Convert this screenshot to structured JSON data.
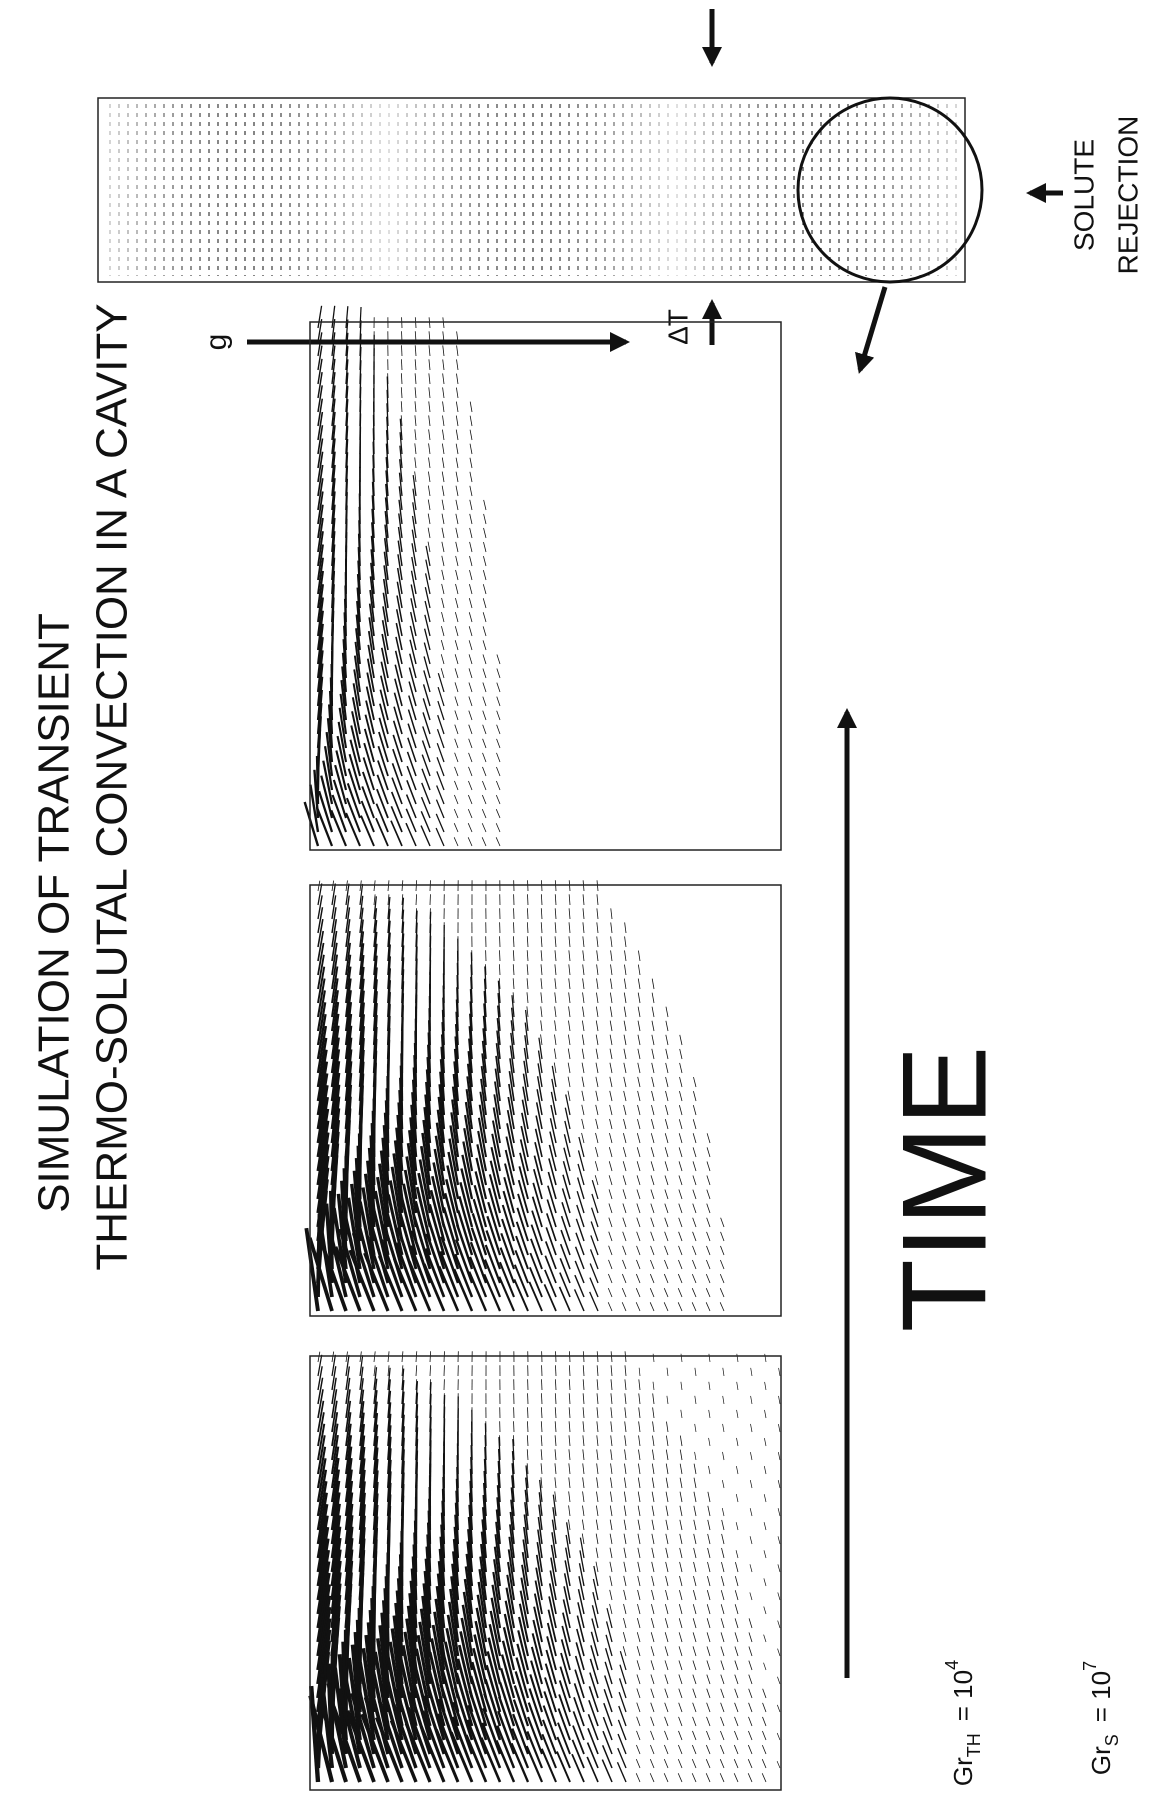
{
  "title": {
    "line1": "SIMULATION OF  TRANSIENT",
    "line2": "THERMO-SOLUTAL CONVECTION IN A CAVITY"
  },
  "labels": {
    "gravity": "g",
    "delta_t": "ΔT",
    "solute": "SOLUTE",
    "rejection": "REJECTION",
    "time": "TIME"
  },
  "parameters": [
    {
      "base": "Gr",
      "sub": "TH",
      "eq": "= 10",
      "sup": "4"
    },
    {
      "base": "Gr",
      "sub": "S",
      "eq": "= 10",
      "sup": "7"
    }
  ]
}
